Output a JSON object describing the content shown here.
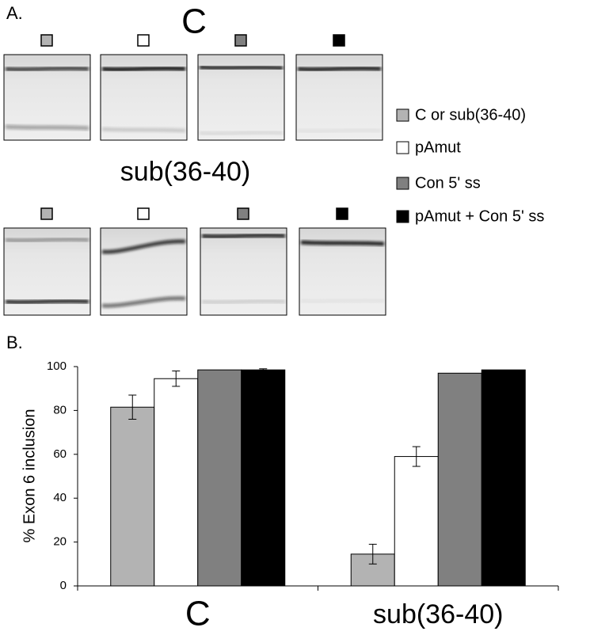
{
  "panel_a": {
    "label": "A.",
    "rows": [
      "C",
      "sub(36-40)"
    ]
  },
  "chart_data": {
    "type": "bar",
    "panel_label": "B.",
    "ylabel": "% Exon 6 inclusion",
    "categories": [
      "C",
      "sub(36-40)"
    ],
    "series": [
      {
        "name": "C or sub(36-40)",
        "color": "#b3b3b3",
        "values": [
          81.5,
          14.5
        ],
        "errors": [
          5.5,
          4.5
        ]
      },
      {
        "name": "pAmut",
        "color": "#ffffff",
        "values": [
          94.5,
          59
        ],
        "errors": [
          3.5,
          4.5
        ]
      },
      {
        "name": "Con 5' ss",
        "color": "#808080",
        "values": [
          98.5,
          97
        ]
      },
      {
        "name": "pAmut + Con 5' ss",
        "color": "#000000",
        "values": [
          98.5,
          98.5
        ],
        "errors": [
          0.5,
          null
        ]
      }
    ],
    "ylim": [
      0,
      100
    ],
    "yticks": [
      0,
      20,
      40,
      60,
      80,
      100
    ],
    "grid": false
  }
}
